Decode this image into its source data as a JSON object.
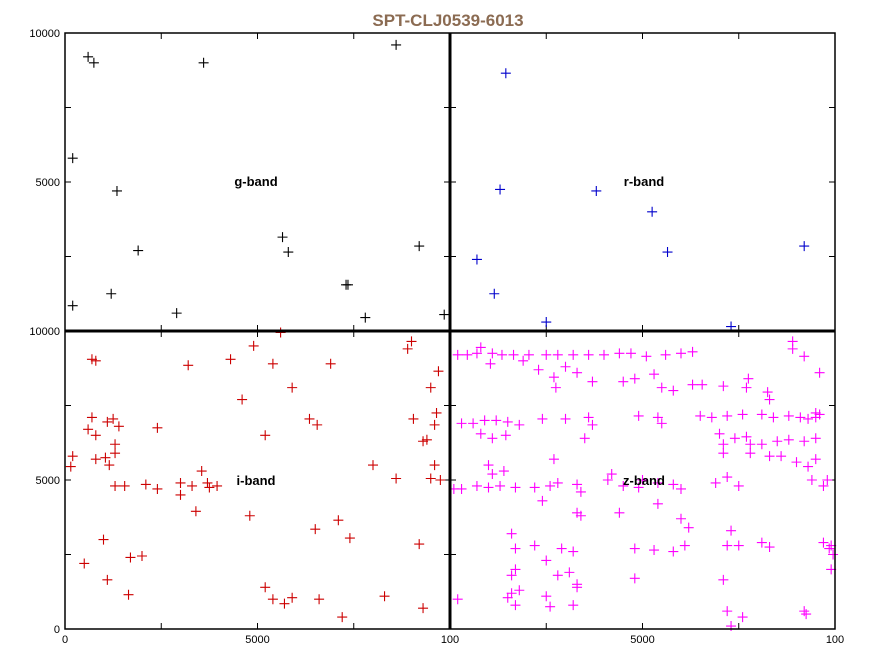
{
  "chart_data": {
    "type": "scatter",
    "title": "SPT-CLJ0539-6013",
    "xlim": [
      0,
      10000
    ],
    "ylim": [
      0,
      10000
    ],
    "panels": [
      {
        "name": "g-band",
        "color": "#000000",
        "x_ticks": [],
        "y_ticks": [
          "5000",
          "10000"
        ],
        "points": [
          [
            600,
            9200
          ],
          [
            750,
            9000
          ],
          [
            8600,
            9600
          ],
          [
            3600,
            9000
          ],
          [
            200,
            5800
          ],
          [
            1350,
            4700
          ],
          [
            1900,
            2700
          ],
          [
            5650,
            3150
          ],
          [
            5800,
            2650
          ],
          [
            9200,
            2850
          ],
          [
            1200,
            1250
          ],
          [
            7300,
            1550
          ],
          [
            7350,
            1550
          ],
          [
            200,
            850
          ],
          [
            2900,
            600
          ],
          [
            7800,
            450
          ],
          [
            9850,
            550
          ]
        ]
      },
      {
        "name": "r-band",
        "color": "#0000cc",
        "x_ticks": [],
        "y_ticks": [],
        "points": [
          [
            1450,
            8650
          ],
          [
            1300,
            4750
          ],
          [
            3800,
            4700
          ],
          [
            5250,
            4000
          ],
          [
            5650,
            2650
          ],
          [
            9200,
            2850
          ],
          [
            700,
            2400
          ],
          [
            1150,
            1250
          ],
          [
            2500,
            300
          ],
          [
            7300,
            150
          ]
        ]
      },
      {
        "name": "i-band",
        "color": "#cc0000",
        "x_ticks": [
          "0",
          "5000",
          "100"
        ],
        "y_ticks": [
          "0",
          "5000",
          "10000"
        ],
        "points": [
          [
            800,
            9000
          ],
          [
            700,
            9050
          ],
          [
            3200,
            8850
          ],
          [
            4300,
            9050
          ],
          [
            4900,
            9500
          ],
          [
            5400,
            8900
          ],
          [
            5600,
            9950
          ],
          [
            5900,
            8100
          ],
          [
            6900,
            8900
          ],
          [
            8900,
            9400
          ],
          [
            9000,
            9650
          ],
          [
            9500,
            8100
          ],
          [
            9700,
            8650
          ],
          [
            4600,
            7700
          ],
          [
            700,
            7100
          ],
          [
            1100,
            6950
          ],
          [
            1250,
            7050
          ],
          [
            1400,
            6800
          ],
          [
            600,
            6700
          ],
          [
            800,
            6500
          ],
          [
            2400,
            6750
          ],
          [
            5200,
            6500
          ],
          [
            6350,
            7050
          ],
          [
            6550,
            6850
          ],
          [
            9050,
            7050
          ],
          [
            9650,
            7250
          ],
          [
            9600,
            6850
          ],
          [
            9400,
            6350
          ],
          [
            9300,
            6300
          ],
          [
            1300,
            6200
          ],
          [
            1300,
            5900
          ],
          [
            200,
            5800
          ],
          [
            150,
            5450
          ],
          [
            800,
            5700
          ],
          [
            1050,
            5750
          ],
          [
            1150,
            5500
          ],
          [
            2100,
            4850
          ],
          [
            2400,
            4700
          ],
          [
            1300,
            4800
          ],
          [
            1550,
            4800
          ],
          [
            3000,
            4900
          ],
          [
            3300,
            4800
          ],
          [
            3550,
            5300
          ],
          [
            3700,
            4900
          ],
          [
            3750,
            4750
          ],
          [
            3950,
            4800
          ],
          [
            3000,
            4500
          ],
          [
            3400,
            3950
          ],
          [
            4800,
            3800
          ],
          [
            6500,
            3350
          ],
          [
            7100,
            3650
          ],
          [
            7400,
            3050
          ],
          [
            8000,
            5500
          ],
          [
            8600,
            5050
          ],
          [
            9600,
            5500
          ],
          [
            9500,
            5050
          ],
          [
            9750,
            5000
          ],
          [
            1000,
            3000
          ],
          [
            1700,
            2400
          ],
          [
            2000,
            2450
          ],
          [
            500,
            2200
          ],
          [
            1100,
            1650
          ],
          [
            1650,
            1150
          ],
          [
            5200,
            1400
          ],
          [
            5400,
            1000
          ],
          [
            5700,
            850
          ],
          [
            5900,
            1050
          ],
          [
            6600,
            1000
          ],
          [
            8300,
            1100
          ],
          [
            7200,
            400
          ],
          [
            9300,
            700
          ],
          [
            9200,
            2850
          ]
        ]
      },
      {
        "name": "z-band",
        "color": "#ff00ff",
        "x_ticks": [
          "5000",
          "100"
        ],
        "y_ticks": [],
        "points": [
          [
            200,
            9200
          ],
          [
            450,
            9200
          ],
          [
            700,
            9250
          ],
          [
            1100,
            9250
          ],
          [
            1350,
            9200
          ],
          [
            1650,
            9200
          ],
          [
            2050,
            9200
          ],
          [
            2500,
            9200
          ],
          [
            2800,
            9200
          ],
          [
            3200,
            9200
          ],
          [
            3600,
            9200
          ],
          [
            4000,
            9200
          ],
          [
            4400,
            9250
          ],
          [
            4700,
            9250
          ],
          [
            5100,
            9150
          ],
          [
            5600,
            9200
          ],
          [
            6000,
            9250
          ],
          [
            6300,
            9300
          ],
          [
            800,
            9450
          ],
          [
            1050,
            8900
          ],
          [
            1900,
            9000
          ],
          [
            2300,
            8700
          ],
          [
            2700,
            8450
          ],
          [
            2750,
            8100
          ],
          [
            3000,
            8800
          ],
          [
            3300,
            8600
          ],
          [
            3700,
            8300
          ],
          [
            4500,
            8300
          ],
          [
            4800,
            8400
          ],
          [
            5300,
            8550
          ],
          [
            5500,
            8100
          ],
          [
            5800,
            8000
          ],
          [
            6300,
            8200
          ],
          [
            6550,
            8200
          ],
          [
            7100,
            8150
          ],
          [
            7750,
            8400
          ],
          [
            7700,
            8100
          ],
          [
            8250,
            7950
          ],
          [
            8300,
            7700
          ],
          [
            9500,
            7250
          ],
          [
            8900,
            9650
          ],
          [
            8900,
            9400
          ],
          [
            9200,
            9150
          ],
          [
            9600,
            8600
          ],
          [
            300,
            6900
          ],
          [
            600,
            6900
          ],
          [
            900,
            7000
          ],
          [
            1200,
            7000
          ],
          [
            1500,
            6950
          ],
          [
            1800,
            6850
          ],
          [
            800,
            6550
          ],
          [
            1100,
            6400
          ],
          [
            1450,
            6500
          ],
          [
            2400,
            7050
          ],
          [
            3000,
            7050
          ],
          [
            3700,
            6850
          ],
          [
            3600,
            7100
          ],
          [
            4900,
            7150
          ],
          [
            5400,
            7100
          ],
          [
            5500,
            6900
          ],
          [
            6500,
            7150
          ],
          [
            6800,
            7100
          ],
          [
            7200,
            7150
          ],
          [
            7600,
            7200
          ],
          [
            8100,
            7200
          ],
          [
            8400,
            7100
          ],
          [
            8800,
            7150
          ],
          [
            9100,
            7100
          ],
          [
            9300,
            7050
          ],
          [
            9500,
            7100
          ],
          [
            9600,
            7200
          ],
          [
            7000,
            6550
          ],
          [
            7100,
            6200
          ],
          [
            7400,
            6400
          ],
          [
            7700,
            6450
          ],
          [
            7800,
            6200
          ],
          [
            8100,
            6200
          ],
          [
            8500,
            6300
          ],
          [
            8800,
            6350
          ],
          [
            9200,
            6300
          ],
          [
            9500,
            6400
          ],
          [
            7100,
            5900
          ],
          [
            7800,
            5900
          ],
          [
            8300,
            5800
          ],
          [
            8600,
            5800
          ],
          [
            9000,
            5600
          ],
          [
            9500,
            5700
          ],
          [
            9300,
            5450
          ],
          [
            3500,
            6400
          ],
          [
            1000,
            5500
          ],
          [
            1400,
            5300
          ],
          [
            1100,
            5200
          ],
          [
            2700,
            5700
          ],
          [
            4100,
            5000
          ],
          [
            4200,
            5200
          ],
          [
            4500,
            4800
          ],
          [
            4900,
            4750
          ],
          [
            5000,
            5000
          ],
          [
            5400,
            4900
          ],
          [
            5800,
            4850
          ],
          [
            6000,
            4700
          ],
          [
            6900,
            4900
          ],
          [
            7200,
            5100
          ],
          [
            7500,
            4800
          ],
          [
            9400,
            5000
          ],
          [
            9700,
            4800
          ],
          [
            9800,
            5000
          ],
          [
            100,
            4700
          ],
          [
            300,
            4700
          ],
          [
            700,
            4800
          ],
          [
            1000,
            4750
          ],
          [
            1300,
            4800
          ],
          [
            1700,
            4750
          ],
          [
            2200,
            4750
          ],
          [
            2600,
            4800
          ],
          [
            2800,
            4900
          ],
          [
            3300,
            4850
          ],
          [
            3400,
            4600
          ],
          [
            2400,
            4300
          ],
          [
            3300,
            3900
          ],
          [
            3400,
            3800
          ],
          [
            4400,
            3900
          ],
          [
            5400,
            4200
          ],
          [
            6000,
            3700
          ],
          [
            6200,
            3400
          ],
          [
            7300,
            3300
          ],
          [
            1600,
            3200
          ],
          [
            1700,
            2700
          ],
          [
            2200,
            2800
          ],
          [
            2900,
            2700
          ],
          [
            3200,
            2600
          ],
          [
            4800,
            2700
          ],
          [
            5300,
            2650
          ],
          [
            6100,
            2800
          ],
          [
            7200,
            2800
          ],
          [
            7500,
            2800
          ],
          [
            8100,
            2900
          ],
          [
            8300,
            2750
          ],
          [
            9700,
            2900
          ],
          [
            9900,
            2800
          ],
          [
            9850,
            2700
          ],
          [
            9950,
            2500
          ],
          [
            2500,
            2300
          ],
          [
            1600,
            1800
          ],
          [
            1700,
            2000
          ],
          [
            2800,
            1800
          ],
          [
            3100,
            1900
          ],
          [
            3300,
            1500
          ],
          [
            4800,
            1700
          ],
          [
            1600,
            1200
          ],
          [
            1800,
            1300
          ],
          [
            1700,
            800
          ],
          [
            1500,
            1050
          ],
          [
            2500,
            1100
          ],
          [
            2600,
            750
          ],
          [
            3200,
            800
          ],
          [
            3300,
            1400
          ],
          [
            7100,
            1650
          ],
          [
            7200,
            600
          ],
          [
            7300,
            100
          ],
          [
            7600,
            400
          ],
          [
            9200,
            600
          ],
          [
            9250,
            500
          ],
          [
            9900,
            2000
          ],
          [
            200,
            1000
          ],
          [
            5800,
            2600
          ]
        ]
      }
    ]
  }
}
